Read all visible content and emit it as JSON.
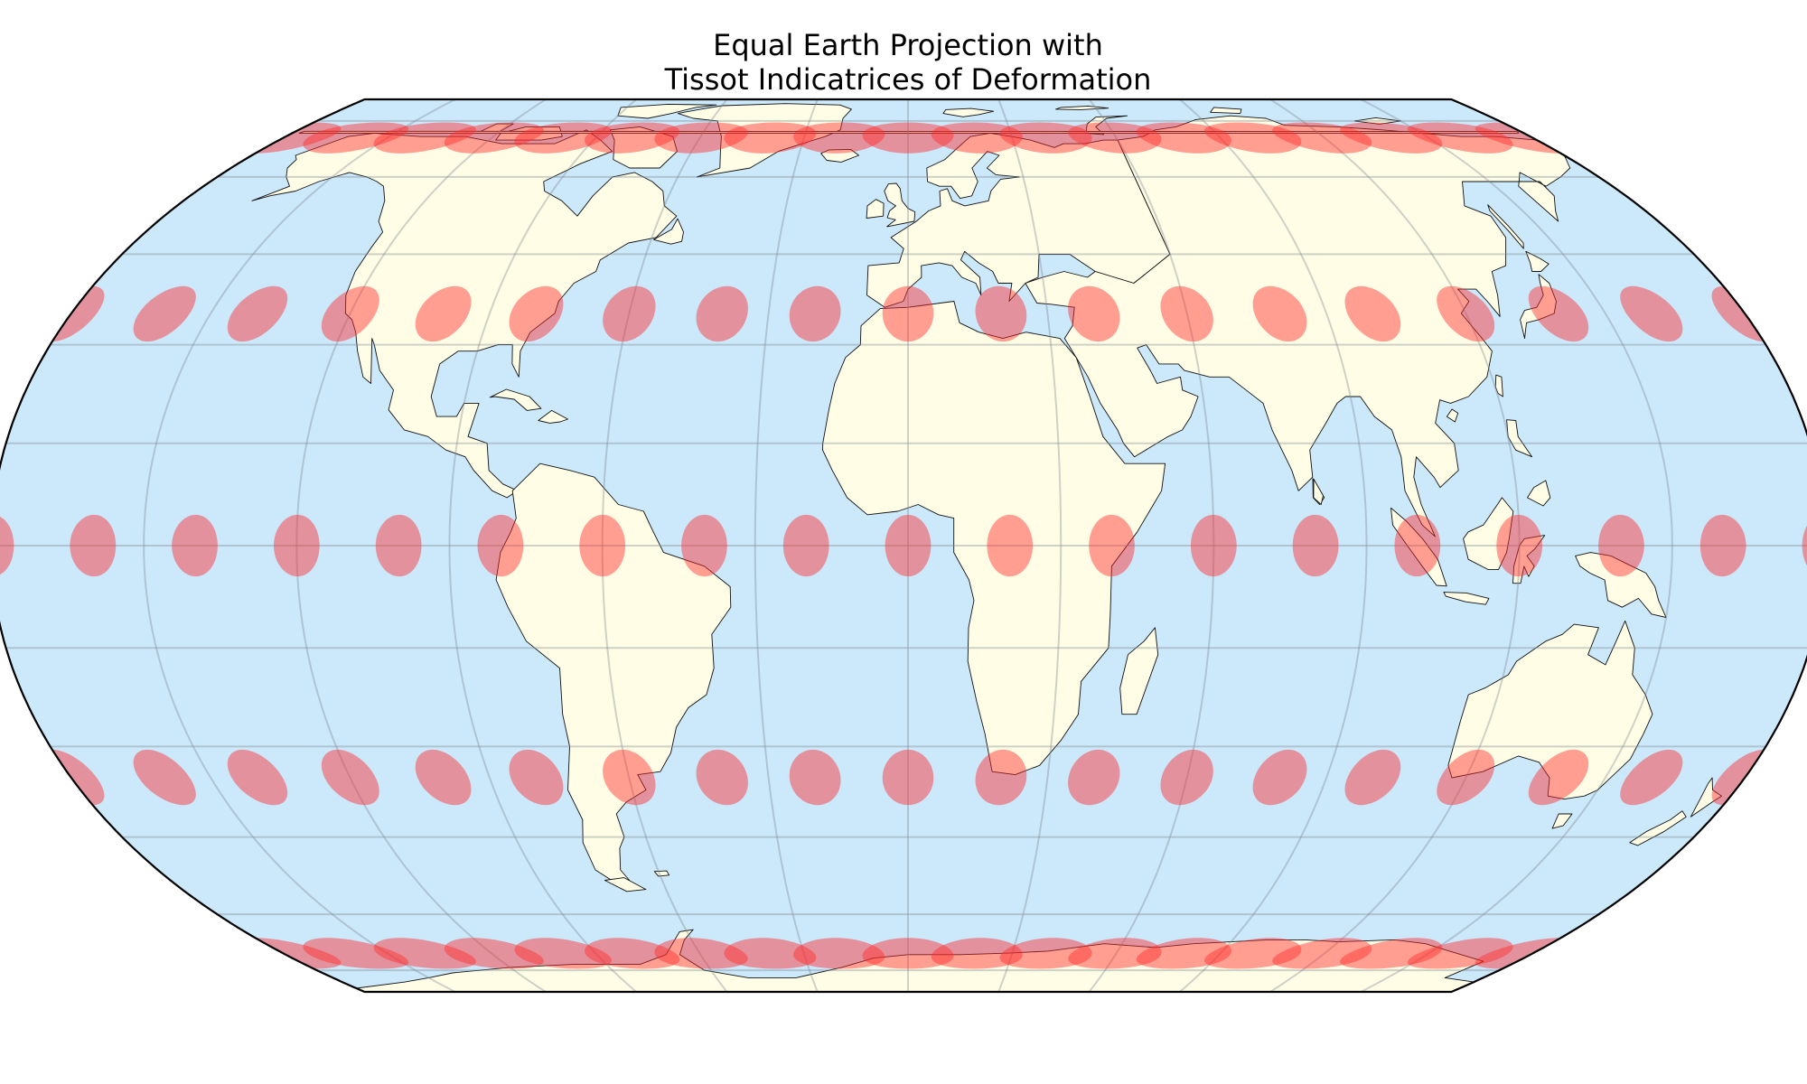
{
  "figure": {
    "title_line_1": "Equal Earth Projection with",
    "title_line_2": "Tissot Indicatrices of Deformation"
  },
  "map": {
    "projection": "Equal Earth",
    "central_longitude": 0,
    "ocean_color": "#cce8fb",
    "land_color": "#fffde6",
    "coastline_color": "#111111",
    "gridlines": {
      "shown": true,
      "meridians_every_deg": 30,
      "parallels_deg": [
        -75,
        -60,
        -45,
        -30,
        -15,
        0,
        15,
        30,
        45,
        60,
        75
      ]
    },
    "tissot_indicatrices": {
      "color": "#ff2a2a",
      "opacity": 0.45,
      "radius_km": 500,
      "longitudes": [
        -180,
        -160,
        -140,
        -120,
        -100,
        -80,
        -60,
        -40,
        -20,
        0,
        20,
        40,
        60,
        80,
        100,
        120,
        140,
        160,
        180
      ],
      "latitudes": [
        -70,
        -35,
        0,
        35,
        70
      ]
    },
    "continents": [
      "North America",
      "Greenland",
      "South America",
      "Europe",
      "Africa",
      "Asia",
      "Australia",
      "Antarctica",
      "Madagascar",
      "New Zealand",
      "Japan",
      "Great Britain",
      "Borneo",
      "Sumatra",
      "New Guinea",
      "Iceland"
    ]
  }
}
